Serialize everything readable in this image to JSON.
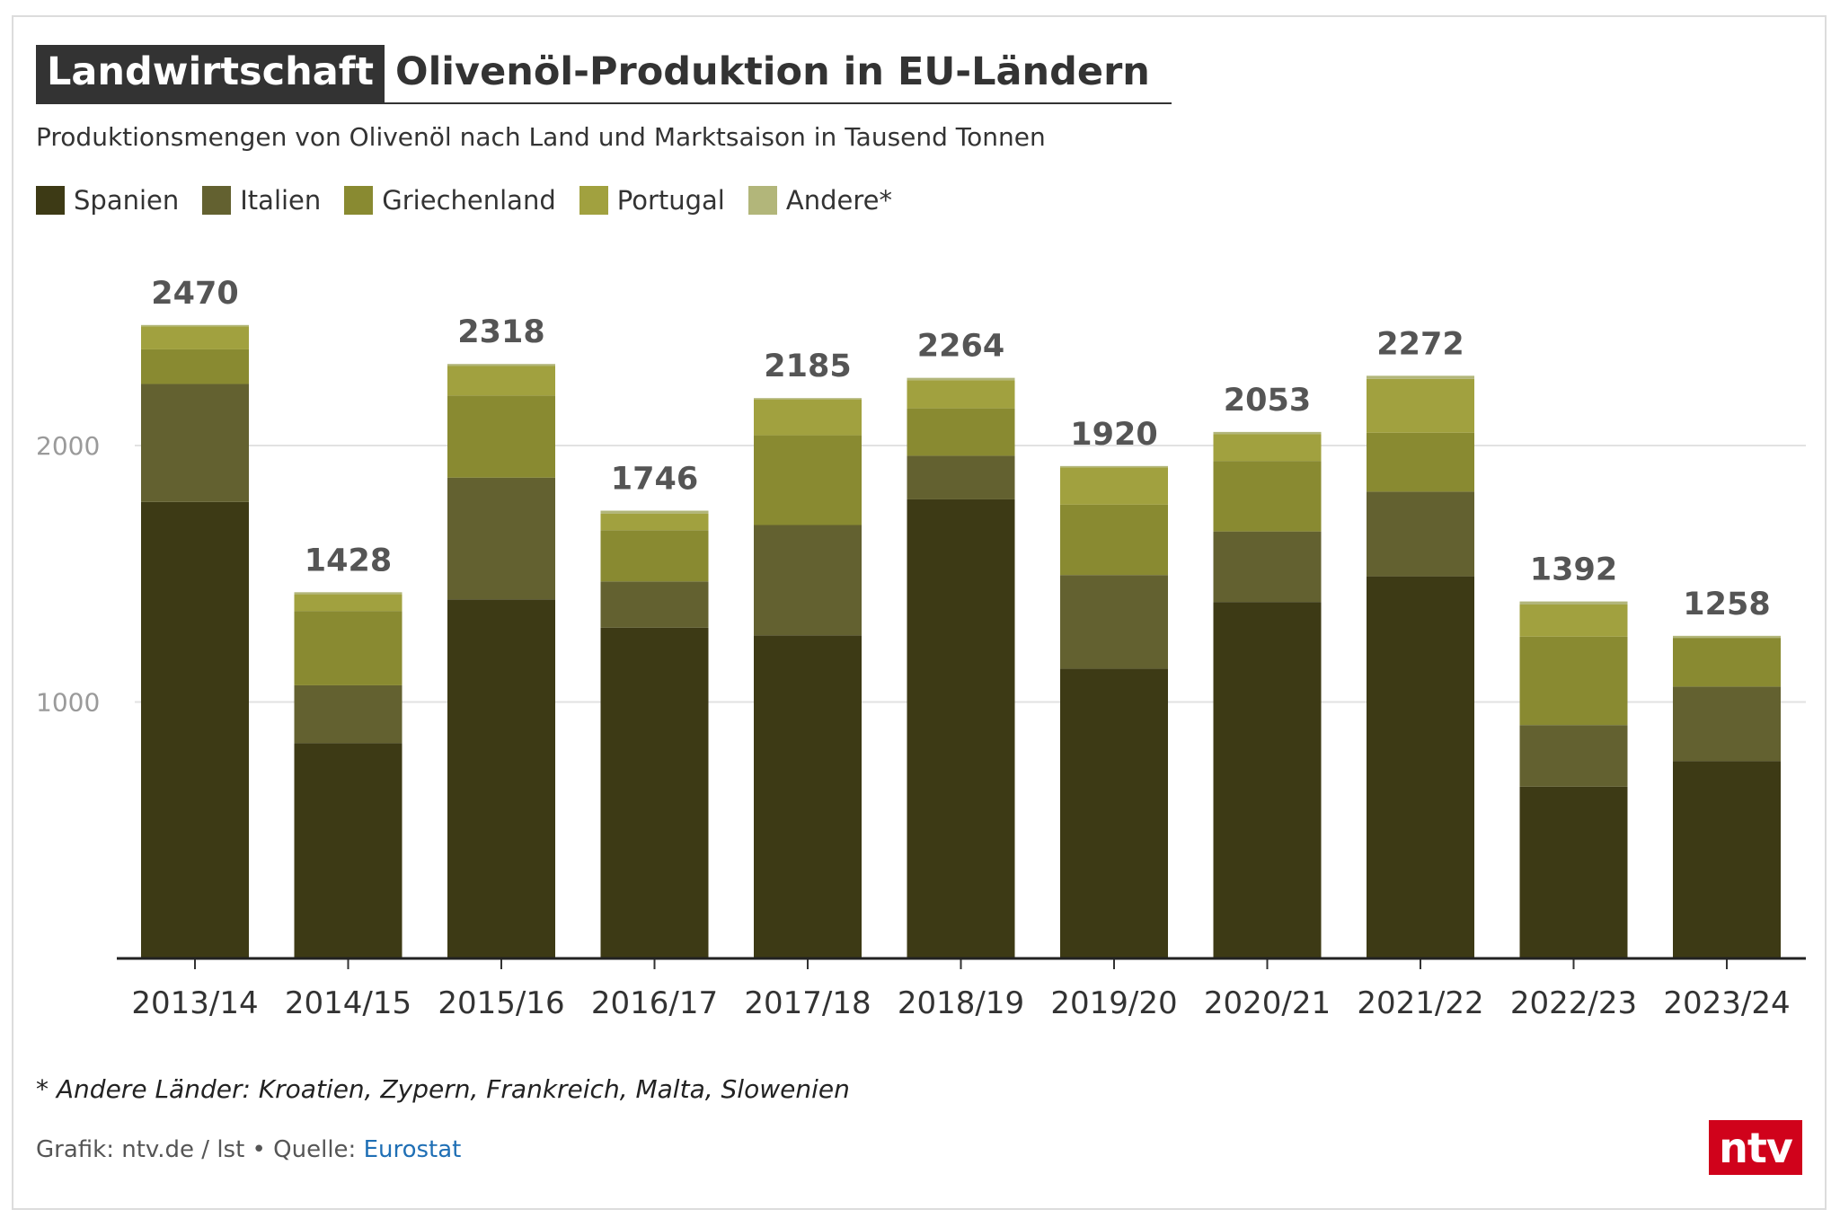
{
  "header": {
    "kicker": "Landwirtschaft",
    "headline": "Olivenöl-Produktion in EU-Ländern",
    "subtitle": "Produktionsmengen von Olivenöl nach Land und Marktsaison in Tausend Tonnen"
  },
  "legend": [
    {
      "label": "Spanien",
      "color": "#3d3a15"
    },
    {
      "label": "Italien",
      "color": "#636130"
    },
    {
      "label": "Griechenland",
      "color": "#898a31"
    },
    {
      "label": "Portugal",
      "color": "#a1a13f"
    },
    {
      "label": "Andere*",
      "color": "#b2b67a"
    }
  ],
  "chart_data": {
    "type": "bar",
    "stacked": true,
    "categories": [
      "2013/14",
      "2014/15",
      "2015/16",
      "2016/17",
      "2017/18",
      "2018/19",
      "2019/20",
      "2020/21",
      "2021/22",
      "2022/23",
      "2023/24"
    ],
    "series": [
      {
        "name": "Spanien",
        "color": "#3d3a15",
        "values": [
          1780,
          840,
          1400,
          1290,
          1260,
          1790,
          1130,
          1390,
          1490,
          670,
          770
        ]
      },
      {
        "name": "Italien",
        "color": "#636130",
        "values": [
          460,
          225,
          475,
          180,
          430,
          170,
          365,
          275,
          330,
          240,
          290
        ]
      },
      {
        "name": "Griechenland",
        "color": "#898a31",
        "values": [
          135,
          290,
          320,
          200,
          350,
          185,
          275,
          275,
          230,
          345,
          190
        ]
      },
      {
        "name": "Portugal",
        "color": "#a1a13f",
        "values": [
          90,
          65,
          115,
          65,
          140,
          110,
          145,
          105,
          210,
          125,
          0
        ]
      },
      {
        "name": "Andere*",
        "color": "#b2b67a",
        "values": [
          5,
          8,
          8,
          11,
          5,
          9,
          5,
          8,
          12,
          12,
          8
        ]
      }
    ],
    "totals": [
      2470,
      1428,
      2318,
      1746,
      2185,
      2264,
      1920,
      2053,
      2272,
      1392,
      1258
    ],
    "ylim": [
      0,
      2470
    ],
    "yticks": [
      1000,
      2000
    ],
    "grid": true,
    "legend_position": "top-left"
  },
  "footnote": "* Andere Länder: Kroatien, Zypern, Frankreich, Malta, Slowenien",
  "source": {
    "prefix": "Grafik: ntv.de / lst • Quelle: ",
    "link": "Eurostat"
  },
  "logo": "ntv"
}
